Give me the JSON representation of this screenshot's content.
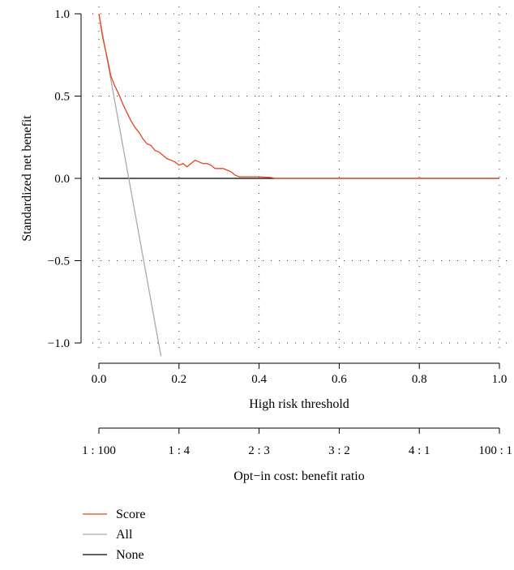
{
  "chart_data": {
    "type": "line",
    "xlabel": "High risk threshold",
    "ylabel": "Standardized net benefit",
    "xlim": [
      0,
      1
    ],
    "ylim": [
      -1.08,
      1.0
    ],
    "grid": true,
    "x_ticks": [
      0.0,
      0.2,
      0.4,
      0.6,
      0.8,
      1.0
    ],
    "x_tick_labels": [
      "0.0",
      "0.2",
      "0.4",
      "0.6",
      "0.8",
      "1.0"
    ],
    "y_ticks": [
      1.0,
      0.5,
      0.0,
      -0.5,
      -1.0
    ],
    "y_tick_labels": [
      "1.0",
      "0.5",
      "0.0",
      "−0.5",
      "−1.0"
    ],
    "secondary_axis": {
      "label": "Opt−in cost: benefit ratio",
      "positions": [
        0.0,
        0.2,
        0.4,
        0.6,
        0.8,
        1.0
      ],
      "tick_labels": [
        "1 : 100",
        "1 : 4",
        "2 : 3",
        "3 : 2",
        "4 : 1",
        "100 : 1"
      ]
    },
    "legend_position": "bottom-left",
    "series": [
      {
        "name": "Score",
        "color": "#e8431f",
        "x": [
          0.0,
          0.01,
          0.02,
          0.03,
          0.04,
          0.05,
          0.06,
          0.07,
          0.08,
          0.09,
          0.1,
          0.11,
          0.12,
          0.13,
          0.14,
          0.15,
          0.16,
          0.17,
          0.18,
          0.19,
          0.2,
          0.21,
          0.22,
          0.23,
          0.24,
          0.25,
          0.26,
          0.27,
          0.28,
          0.29,
          0.3,
          0.31,
          0.32,
          0.33,
          0.34,
          0.35,
          0.36,
          0.38,
          0.4,
          0.43,
          0.44,
          0.5,
          0.6,
          0.7,
          0.8,
          0.9,
          1.0
        ],
        "y": [
          1.0,
          0.85,
          0.74,
          0.62,
          0.56,
          0.51,
          0.45,
          0.4,
          0.35,
          0.31,
          0.28,
          0.24,
          0.21,
          0.2,
          0.17,
          0.16,
          0.14,
          0.12,
          0.11,
          0.1,
          0.08,
          0.09,
          0.07,
          0.09,
          0.11,
          0.1,
          0.09,
          0.09,
          0.08,
          0.06,
          0.06,
          0.06,
          0.05,
          0.04,
          0.02,
          0.01,
          0.01,
          0.01,
          0.01,
          0.005,
          0.0,
          0.0,
          0.0,
          0.0,
          0.0,
          0.0,
          0.0
        ]
      },
      {
        "name": "All",
        "color": "#aaaaaa",
        "x": [
          0.0,
          0.155
        ],
        "y": [
          1.0,
          -1.08
        ]
      },
      {
        "name": "None",
        "color": "#000000",
        "x": [
          0.0,
          1.0
        ],
        "y": [
          0.0,
          0.0
        ]
      }
    ]
  }
}
